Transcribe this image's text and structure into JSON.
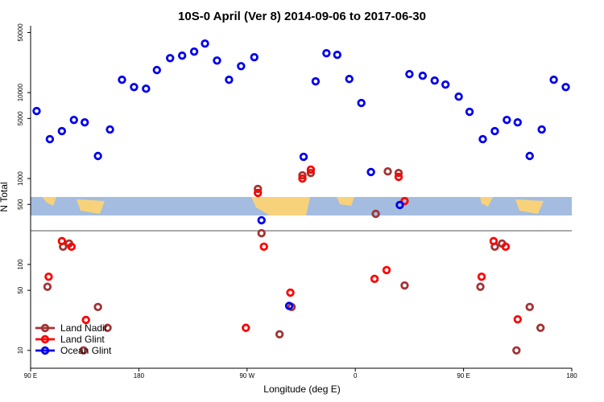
{
  "chart_data": {
    "type": "scatter",
    "title": "10S-0 April (Ver 8)   2014-09-06 to 2017-06-30",
    "x_label": "Longitude (deg E)",
    "y_label": "N Total",
    "log_y": true,
    "legend": "bottom-left",
    "xlim": [
      90,
      540
    ],
    "ylim": [
      6.2,
      60000
    ],
    "xticks": [
      {
        "value": 90,
        "label": "90 E"
      },
      180,
      {
        "value": 270,
        "label": "90 W"
      },
      {
        "value": 360,
        "label": "0"
      },
      {
        "value": 450,
        "label": "90 E"
      },
      {
        "value": 540,
        "label": "180"
      }
    ],
    "yticks": [
      10,
      50,
      100,
      500,
      1000,
      5000,
      10000,
      50000
    ],
    "series": [
      {
        "name": "Land Nadir",
        "color": "#a33333",
        "x": [
          104,
          117,
          122,
          134,
          146,
          154,
          279,
          282,
          297,
          307,
          316,
          323,
          377,
          387,
          396,
          401,
          464,
          476,
          482,
          494,
          505,
          514
        ],
        "values": [
          55,
          161,
          175,
          10,
          32,
          18.3,
          757,
          231,
          15.4,
          32,
          1090,
          1160,
          388,
          1210,
          1160,
          57,
          55,
          161,
          175,
          10,
          32,
          18.3
        ]
      },
      {
        "name": "Land Glint",
        "color": "#ff0000",
        "x": [
          105,
          116,
          124,
          136,
          269,
          279,
          284,
          306,
          316,
          323,
          376,
          386,
          396,
          401,
          465,
          475,
          485,
          495
        ],
        "values": [
          72,
          187,
          161,
          22.6,
          18.3,
          680,
          161,
          47,
          1000,
          1270,
          68,
          86,
          1045,
          547,
          72,
          187,
          161,
          23
        ]
      },
      {
        "name": "Ocean Glint",
        "color": "#0000ee",
        "x": [
          95,
          106,
          116,
          126,
          135,
          146,
          156,
          166,
          176,
          186,
          195,
          206,
          216,
          226,
          235,
          245,
          255,
          265,
          276,
          282,
          305,
          317,
          327,
          336,
          345,
          355,
          365,
          373,
          397,
          405,
          416,
          426,
          435,
          446,
          455,
          466,
          476,
          486,
          495,
          505,
          515,
          525,
          535
        ],
        "values": [
          6100,
          2870,
          3560,
          4810,
          4500,
          1830,
          3720,
          14100,
          11600,
          11100,
          18300,
          25200,
          26900,
          30000,
          37200,
          23600,
          14100,
          20300,
          25800,
          327,
          33,
          1790,
          13500,
          28700,
          27500,
          14400,
          7570,
          1190,
          492,
          16400,
          15700,
          13800,
          12400,
          8970,
          5970,
          2870,
          3560,
          4810,
          4500,
          1830,
          3720,
          14100,
          11600
        ]
      }
    ]
  }
}
